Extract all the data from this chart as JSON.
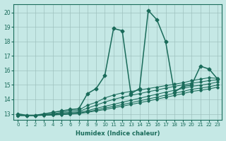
{
  "xlabel": "Humidex (Indice chaleur)",
  "ylabel": "",
  "xlim": [
    -0.5,
    23.5
  ],
  "ylim": [
    12.6,
    20.6
  ],
  "yticks": [
    13,
    14,
    15,
    16,
    17,
    18,
    19,
    20
  ],
  "xticks": [
    0,
    1,
    2,
    3,
    4,
    5,
    6,
    7,
    8,
    9,
    10,
    11,
    12,
    13,
    14,
    15,
    16,
    17,
    18,
    19,
    20,
    21,
    22,
    23
  ],
  "background_color": "#c5e8e5",
  "grid_color": "#9bbebb",
  "line_color": "#1a6b5a",
  "lines": [
    {
      "x": [
        0,
        1,
        2,
        3,
        4,
        5,
        6,
        7,
        8,
        9,
        10,
        11,
        12,
        13,
        14,
        15,
        16,
        17,
        18,
        19,
        20,
        21,
        22,
        23
      ],
      "y": [
        13.0,
        12.9,
        12.9,
        13.0,
        13.1,
        13.2,
        13.3,
        13.35,
        14.4,
        14.75,
        15.65,
        18.9,
        18.75,
        14.4,
        14.75,
        20.15,
        19.5,
        18.0,
        14.5,
        14.9,
        15.0,
        16.3,
        16.1,
        15.4
      ]
    },
    {
      "x": [
        0,
        1,
        2,
        3,
        4,
        5,
        6,
        7,
        8,
        9,
        10,
        11,
        12,
        13,
        14,
        15,
        16,
        17,
        18,
        19,
        20,
        21,
        22,
        23
      ],
      "y": [
        12.9,
        12.9,
        12.9,
        12.95,
        13.0,
        13.1,
        13.2,
        13.25,
        13.6,
        13.8,
        14.1,
        14.3,
        14.45,
        14.55,
        14.65,
        14.75,
        14.85,
        14.95,
        15.05,
        15.15,
        15.3,
        15.4,
        15.5,
        15.45
      ]
    },
    {
      "x": [
        0,
        1,
        2,
        3,
        4,
        5,
        6,
        7,
        8,
        9,
        10,
        11,
        12,
        13,
        14,
        15,
        16,
        17,
        18,
        19,
        20,
        21,
        22,
        23
      ],
      "y": [
        12.9,
        12.9,
        12.9,
        12.93,
        12.97,
        13.05,
        13.1,
        13.15,
        13.4,
        13.6,
        13.82,
        14.0,
        14.15,
        14.28,
        14.4,
        14.53,
        14.65,
        14.78,
        14.9,
        15.0,
        15.12,
        15.2,
        15.3,
        15.35
      ]
    },
    {
      "x": [
        0,
        1,
        2,
        3,
        4,
        5,
        6,
        7,
        8,
        9,
        10,
        11,
        12,
        13,
        14,
        15,
        16,
        17,
        18,
        19,
        20,
        21,
        22,
        23
      ],
      "y": [
        12.9,
        12.9,
        12.9,
        12.92,
        12.96,
        13.0,
        13.05,
        13.1,
        13.22,
        13.38,
        13.52,
        13.66,
        13.8,
        13.94,
        14.08,
        14.22,
        14.36,
        14.5,
        14.63,
        14.76,
        14.9,
        14.98,
        15.08,
        15.2
      ]
    },
    {
      "x": [
        0,
        1,
        2,
        3,
        4,
        5,
        6,
        7,
        8,
        9,
        10,
        11,
        12,
        13,
        14,
        15,
        16,
        17,
        18,
        19,
        20,
        21,
        22,
        23
      ],
      "y": [
        12.9,
        12.9,
        12.9,
        12.91,
        12.94,
        12.97,
        13.0,
        13.04,
        13.15,
        13.27,
        13.4,
        13.52,
        13.64,
        13.77,
        13.9,
        14.03,
        14.16,
        14.3,
        14.42,
        14.55,
        14.7,
        14.78,
        14.87,
        15.0
      ]
    },
    {
      "x": [
        0,
        1,
        2,
        3,
        4,
        5,
        6,
        7,
        8,
        9,
        10,
        11,
        12,
        13,
        14,
        15,
        16,
        17,
        18,
        19,
        20,
        21,
        22,
        23
      ],
      "y": [
        12.88,
        12.88,
        12.88,
        12.9,
        12.92,
        12.95,
        12.98,
        13.02,
        13.1,
        13.2,
        13.3,
        13.42,
        13.53,
        13.65,
        13.77,
        13.89,
        14.02,
        14.15,
        14.27,
        14.4,
        14.55,
        14.63,
        14.72,
        14.85
      ]
    }
  ]
}
